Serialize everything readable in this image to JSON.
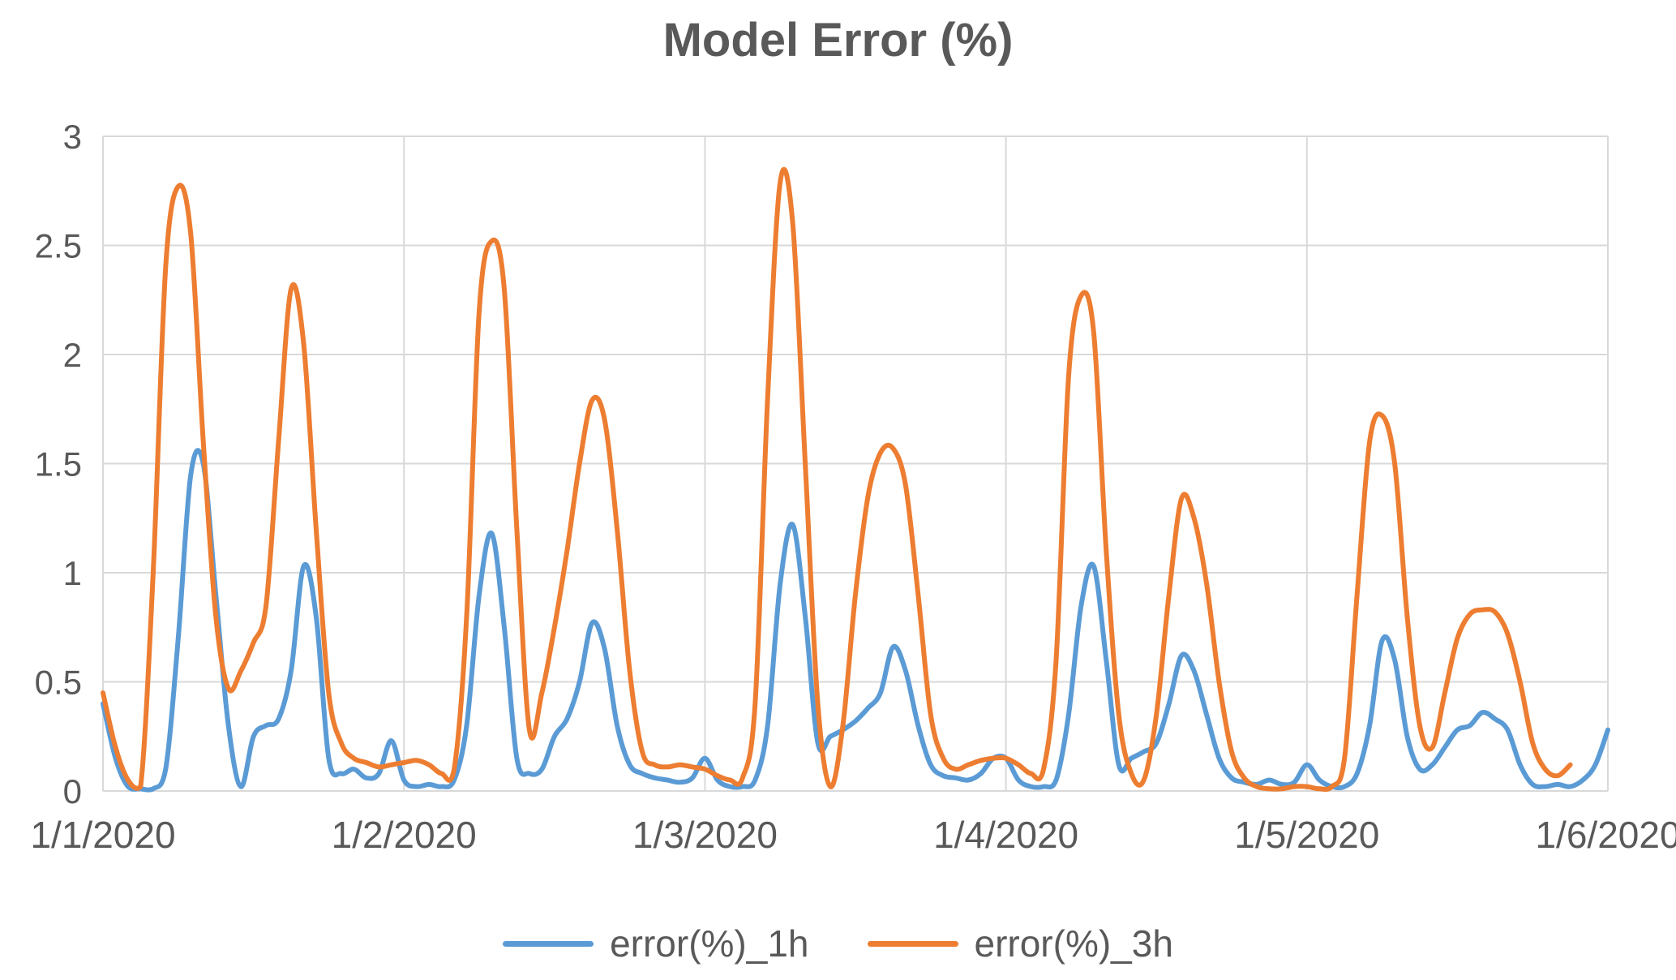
{
  "chart_data": {
    "type": "line",
    "title": "Model Error (%)",
    "x_tick_labels": [
      "1/1/2020",
      "1/2/2020",
      "1/3/2020",
      "1/4/2020",
      "1/5/2020",
      "1/6/2020"
    ],
    "y_tick_labels": [
      "0",
      "0.5",
      "1",
      "1.5",
      "2",
      "2.5",
      "3"
    ],
    "ylim": [
      0,
      3
    ],
    "x_unit": "hours",
    "x_hours_range": [
      0,
      120
    ],
    "points_per_day": 24,
    "grid": true,
    "legend_position": "bottom",
    "background_color": "#FFFFFF",
    "grid_color": "#D9D9D9",
    "axis_text_color": "#595959",
    "title_color": "#595959",
    "series": [
      {
        "name": "error(%)_1h",
        "color": "#5B9BD5",
        "start_hour": 0,
        "values": [
          0.4,
          0.15,
          0.02,
          0.01,
          0.01,
          0.1,
          0.7,
          1.45,
          1.5,
          0.9,
          0.3,
          0.02,
          0.25,
          0.3,
          0.33,
          0.55,
          1.03,
          0.8,
          0.15,
          0.08,
          0.1,
          0.06,
          0.08,
          0.23,
          0.05,
          0.02,
          0.03,
          0.02,
          0.05,
          0.3,
          0.9,
          1.18,
          0.75,
          0.15,
          0.08,
          0.1,
          0.25,
          0.33,
          0.5,
          0.77,
          0.65,
          0.3,
          0.12,
          0.08,
          0.06,
          0.05,
          0.04,
          0.06,
          0.15,
          0.05,
          0.02,
          0.02,
          0.05,
          0.3,
          0.95,
          1.22,
          0.8,
          0.22,
          0.25,
          0.28,
          0.32,
          0.38,
          0.45,
          0.66,
          0.55,
          0.3,
          0.12,
          0.07,
          0.06,
          0.05,
          0.08,
          0.15,
          0.15,
          0.05,
          0.02,
          0.02,
          0.05,
          0.35,
          0.85,
          1.03,
          0.6,
          0.12,
          0.15,
          0.18,
          0.22,
          0.4,
          0.62,
          0.55,
          0.35,
          0.15,
          0.06,
          0.04,
          0.03,
          0.05,
          0.03,
          0.04,
          0.12,
          0.05,
          0.02,
          0.02,
          0.08,
          0.3,
          0.69,
          0.6,
          0.25,
          0.1,
          0.12,
          0.2,
          0.28,
          0.3,
          0.36,
          0.33,
          0.28,
          0.12,
          0.03,
          0.02,
          0.03,
          0.02,
          0.05,
          0.12,
          0.28
        ]
      },
      {
        "name": "error(%)_3h",
        "color": "#ED7D31",
        "start_hour": 0,
        "values": [
          0.45,
          0.2,
          0.05,
          0.02,
          1.0,
          2.4,
          2.77,
          2.55,
          1.6,
          0.8,
          0.47,
          0.55,
          0.68,
          0.85,
          1.6,
          2.3,
          2.05,
          1.2,
          0.45,
          0.22,
          0.15,
          0.13,
          0.11,
          0.12,
          0.13,
          0.14,
          0.12,
          0.08,
          0.1,
          0.8,
          2.2,
          2.52,
          2.3,
          1.2,
          0.28,
          0.45,
          0.75,
          1.1,
          1.5,
          1.79,
          1.7,
          1.2,
          0.55,
          0.18,
          0.12,
          0.11,
          0.12,
          0.11,
          0.1,
          0.07,
          0.05,
          0.06,
          0.4,
          1.8,
          2.79,
          2.6,
          1.5,
          0.4,
          0.02,
          0.3,
          0.9,
          1.35,
          1.55,
          1.57,
          1.4,
          0.9,
          0.35,
          0.15,
          0.1,
          0.12,
          0.14,
          0.15,
          0.15,
          0.12,
          0.08,
          0.1,
          0.6,
          1.9,
          2.27,
          2.1,
          1.1,
          0.35,
          0.08,
          0.05,
          0.35,
          0.9,
          1.34,
          1.25,
          0.95,
          0.5,
          0.18,
          0.06,
          0.02,
          0.01,
          0.01,
          0.02,
          0.02,
          0.01,
          0.02,
          0.15,
          0.9,
          1.6,
          1.72,
          1.5,
          0.8,
          0.3,
          0.2,
          0.45,
          0.7,
          0.81,
          0.83,
          0.82,
          0.72,
          0.5,
          0.22,
          0.1,
          0.07,
          0.12
        ]
      }
    ]
  }
}
